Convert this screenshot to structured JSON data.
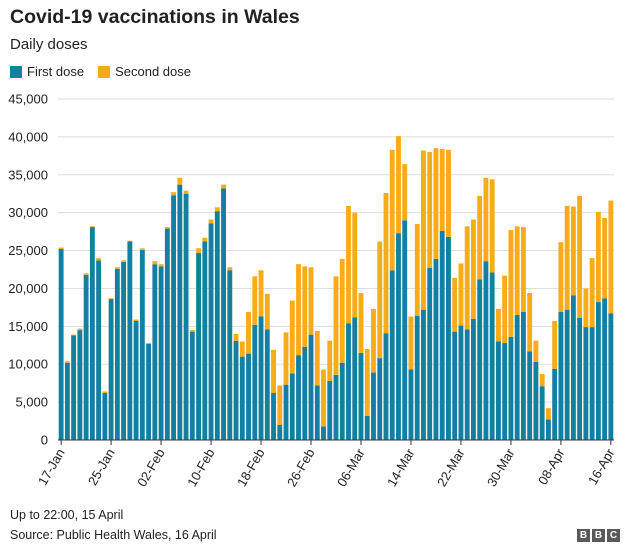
{
  "header": {
    "title": "Covid-19 vaccinations in Wales",
    "subtitle": "Daily doses"
  },
  "legend": {
    "first": "First dose",
    "second": "Second dose"
  },
  "colors": {
    "first": "#1380A1",
    "second": "#FAAB18",
    "axis": "#333333",
    "grid": "#dddddd"
  },
  "footer": {
    "note": "Up to 22:00, 15 April",
    "source": "Source: Public Health Wales, 16 April",
    "brand": [
      "B",
      "B",
      "C"
    ]
  },
  "chart_data": {
    "type": "bar",
    "stacked": true,
    "title": "Covid-19 vaccinations in Wales",
    "subtitle": "Daily doses",
    "ylim": [
      0,
      45000
    ],
    "yticks": [
      0,
      5000,
      10000,
      15000,
      20000,
      25000,
      30000,
      35000,
      40000,
      45000
    ],
    "ytick_labels": [
      "0",
      "5,000",
      "10,000",
      "15,000",
      "20,000",
      "25,000",
      "30,000",
      "35,000",
      "40,000",
      "45,000"
    ],
    "grid": "horizontal",
    "legend_position": "top-left",
    "x_tick_labels": [
      {
        "index": 0,
        "label": "17-Jan"
      },
      {
        "index": 8,
        "label": "25-Jan"
      },
      {
        "index": 16,
        "label": "02-Feb"
      },
      {
        "index": 24,
        "label": "10-Feb"
      },
      {
        "index": 32,
        "label": "18-Feb"
      },
      {
        "index": 40,
        "label": "26-Feb"
      },
      {
        "index": 48,
        "label": "06-Mar"
      },
      {
        "index": 56,
        "label": "14-Mar"
      },
      {
        "index": 64,
        "label": "22-Mar"
      },
      {
        "index": 72,
        "label": "30-Mar"
      },
      {
        "index": 80,
        "label": "08-Apr"
      },
      {
        "index": 88,
        "label": "16-Apr"
      }
    ],
    "series": [
      {
        "name": "First dose",
        "values": [
          25200,
          10200,
          13800,
          14500,
          21800,
          28100,
          23700,
          6200,
          18600,
          22600,
          23500,
          26200,
          15700,
          25100,
          12700,
          23200,
          22900,
          27900,
          32300,
          33700,
          32500,
          14300,
          24700,
          26200,
          28600,
          30200,
          33200,
          22400,
          13100,
          11000,
          11400,
          15200,
          16300,
          14600,
          6200,
          2000,
          7300,
          8800,
          11200,
          12300,
          13900,
          7200,
          1800,
          7800,
          8600,
          10200,
          15400,
          16200,
          11500,
          3200,
          8900,
          10800,
          14100,
          22400,
          27300,
          29000,
          9300,
          16400,
          17200,
          22700,
          23900,
          27600,
          26800,
          14300,
          15100,
          14600,
          16000,
          21200,
          23600,
          22100,
          13000,
          12800,
          13600,
          16500,
          16900,
          11700,
          10300,
          7100,
          2700,
          9400,
          16900,
          17200,
          19100,
          16100,
          14900,
          14900,
          18200,
          18700,
          16700
        ],
        "color": "#1380A1"
      },
      {
        "name": "Second dose",
        "values": [
          200,
          200,
          100,
          200,
          200,
          100,
          300,
          200,
          100,
          200,
          200,
          100,
          200,
          200,
          100,
          400,
          300,
          200,
          400,
          900,
          400,
          200,
          600,
          500,
          500,
          500,
          500,
          400,
          900,
          2000,
          5500,
          6400,
          6100,
          4700,
          5700,
          5200,
          6900,
          9600,
          12000,
          10600,
          8900,
          7200,
          7500,
          5300,
          13000,
          13700,
          15500,
          13800,
          7900,
          8800,
          8400,
          15400,
          18500,
          15900,
          12800,
          7400,
          7000,
          12100,
          21000,
          15300,
          14600,
          10800,
          11500,
          7100,
          8200,
          13600,
          13100,
          11000,
          11000,
          12300,
          4300,
          8900,
          14100,
          11700,
          11200,
          7700,
          2800,
          1600,
          1500,
          6300,
          9200,
          13700,
          11700,
          16100,
          5100,
          9100,
          11900,
          10600,
          14900
        ],
        "color": "#FAAB18"
      }
    ]
  }
}
